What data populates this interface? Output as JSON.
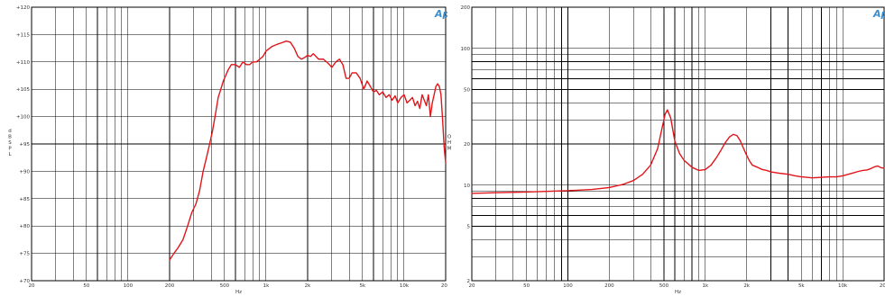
{
  "chart_data": [
    {
      "type": "line",
      "title": "",
      "xlabel": "Hz",
      "ylabel": "d B S P L",
      "x_scale": "log",
      "xlim": [
        20,
        20000
      ],
      "ylim": [
        70,
        120
      ],
      "x_ticks": [
        20,
        50,
        100,
        200,
        500,
        1000,
        2000,
        5000,
        10000,
        20000
      ],
      "x_tick_labels": [
        "20",
        "50",
        "100",
        "200",
        "500",
        "1k",
        "2k",
        "5k",
        "10k",
        "20k"
      ],
      "y_ticks": [
        70,
        75,
        80,
        85,
        90,
        95,
        100,
        105,
        110,
        115,
        120
      ],
      "y_tick_labels": [
        "+70",
        "+75",
        "+80",
        "+85",
        "+90",
        "+95",
        "+100",
        "+105",
        "+110",
        "+115",
        "+120"
      ],
      "grid": true,
      "logo": "Ap",
      "series": [
        {
          "color": "#e0161b",
          "x": [
            200,
            215,
            230,
            250,
            270,
            290,
            310,
            330,
            350,
            370,
            390,
            410,
            430,
            450,
            470,
            490,
            510,
            530,
            560,
            600,
            640,
            680,
            720,
            760,
            800,
            850,
            900,
            950,
            1000,
            1100,
            1200,
            1300,
            1400,
            1500,
            1600,
            1700,
            1800,
            1900,
            2000,
            2100,
            2200,
            2400,
            2600,
            2800,
            3000,
            3200,
            3400,
            3600,
            3800,
            4000,
            4200,
            4500,
            4800,
            5100,
            5400,
            5700,
            6000,
            6300,
            6600,
            7000,
            7400,
            7800,
            8200,
            8600,
            9000,
            9500,
            10000,
            10500,
            11000,
            11500,
            12000,
            12500,
            13000,
            13500,
            14000,
            14500,
            15000,
            15500,
            16000,
            16500,
            17000,
            17500,
            18000,
            18500,
            19000,
            19500,
            20000
          ],
          "y": [
            73.8,
            75.0,
            76.0,
            77.5,
            80.0,
            82.5,
            84.0,
            86.5,
            90.0,
            92.5,
            95.0,
            97.5,
            100.5,
            103.5,
            105.0,
            106.5,
            107.5,
            108.5,
            109.5,
            109.5,
            109.0,
            110.0,
            109.5,
            109.5,
            110.0,
            110.0,
            110.5,
            111.0,
            112.0,
            112.8,
            113.2,
            113.5,
            113.8,
            113.6,
            112.5,
            111.0,
            110.5,
            110.8,
            111.2,
            111.0,
            111.5,
            110.5,
            110.5,
            109.8,
            109.0,
            110.0,
            110.5,
            109.5,
            107.0,
            107.0,
            108.0,
            108.0,
            107.0,
            105.0,
            106.5,
            105.5,
            104.5,
            104.8,
            104.0,
            104.5,
            103.5,
            104.0,
            103.0,
            103.8,
            102.5,
            103.5,
            104.0,
            102.5,
            103.0,
            103.5,
            102.0,
            102.8,
            101.5,
            104.0,
            103.0,
            102.0,
            104.0,
            100.0,
            102.5,
            104.0,
            105.5,
            106.0,
            105.5,
            104.0,
            99.5,
            94.5,
            91.5
          ]
        }
      ]
    },
    {
      "type": "line",
      "title": "",
      "xlabel": "Hz",
      "ylabel": "O H M",
      "x_scale": "log",
      "y_scale": "log",
      "xlim": [
        20,
        20000
      ],
      "ylim": [
        2,
        200
      ],
      "x_ticks": [
        20,
        50,
        100,
        200,
        500,
        1000,
        2000,
        5000,
        10000,
        20000
      ],
      "x_tick_labels": [
        "20",
        "50",
        "100",
        "200",
        "500",
        "1k",
        "2k",
        "5k",
        "10k",
        "20k"
      ],
      "y_ticks": [
        2,
        5,
        10,
        20,
        50,
        100,
        200
      ],
      "y_tick_labels": [
        "2",
        "5",
        "10",
        "20",
        "50",
        "100",
        "200"
      ],
      "grid": true,
      "logo": "Ap",
      "series": [
        {
          "color": "#e0161b",
          "x": [
            20,
            30,
            50,
            70,
            100,
            150,
            200,
            250,
            300,
            350,
            400,
            450,
            480,
            510,
            530,
            560,
            600,
            650,
            700,
            800,
            900,
            1000,
            1100,
            1200,
            1300,
            1400,
            1500,
            1600,
            1700,
            1800,
            1900,
            2000,
            2100,
            2200,
            2400,
            2600,
            2800,
            3000,
            3500,
            4000,
            4500,
            5000,
            6000,
            7000,
            8000,
            9000,
            10000,
            11000,
            12000,
            13000,
            14000,
            15000,
            16000,
            17000,
            18000,
            19000,
            20000
          ],
          "y": [
            8.7,
            8.8,
            8.9,
            9.0,
            9.1,
            9.3,
            9.6,
            10.1,
            10.8,
            12.0,
            14.0,
            18.5,
            25.0,
            33.0,
            35.5,
            31.0,
            21.0,
            17.0,
            15.2,
            13.5,
            12.8,
            13.0,
            14.0,
            15.8,
            18.0,
            20.5,
            22.5,
            23.5,
            23.0,
            21.0,
            18.5,
            16.5,
            15.0,
            14.0,
            13.5,
            13.0,
            12.8,
            12.5,
            12.2,
            12.0,
            11.7,
            11.5,
            11.3,
            11.4,
            11.5,
            11.5,
            11.7,
            12.0,
            12.3,
            12.6,
            12.8,
            12.9,
            13.2,
            13.6,
            13.8,
            13.4,
            13.3
          ]
        }
      ]
    }
  ]
}
